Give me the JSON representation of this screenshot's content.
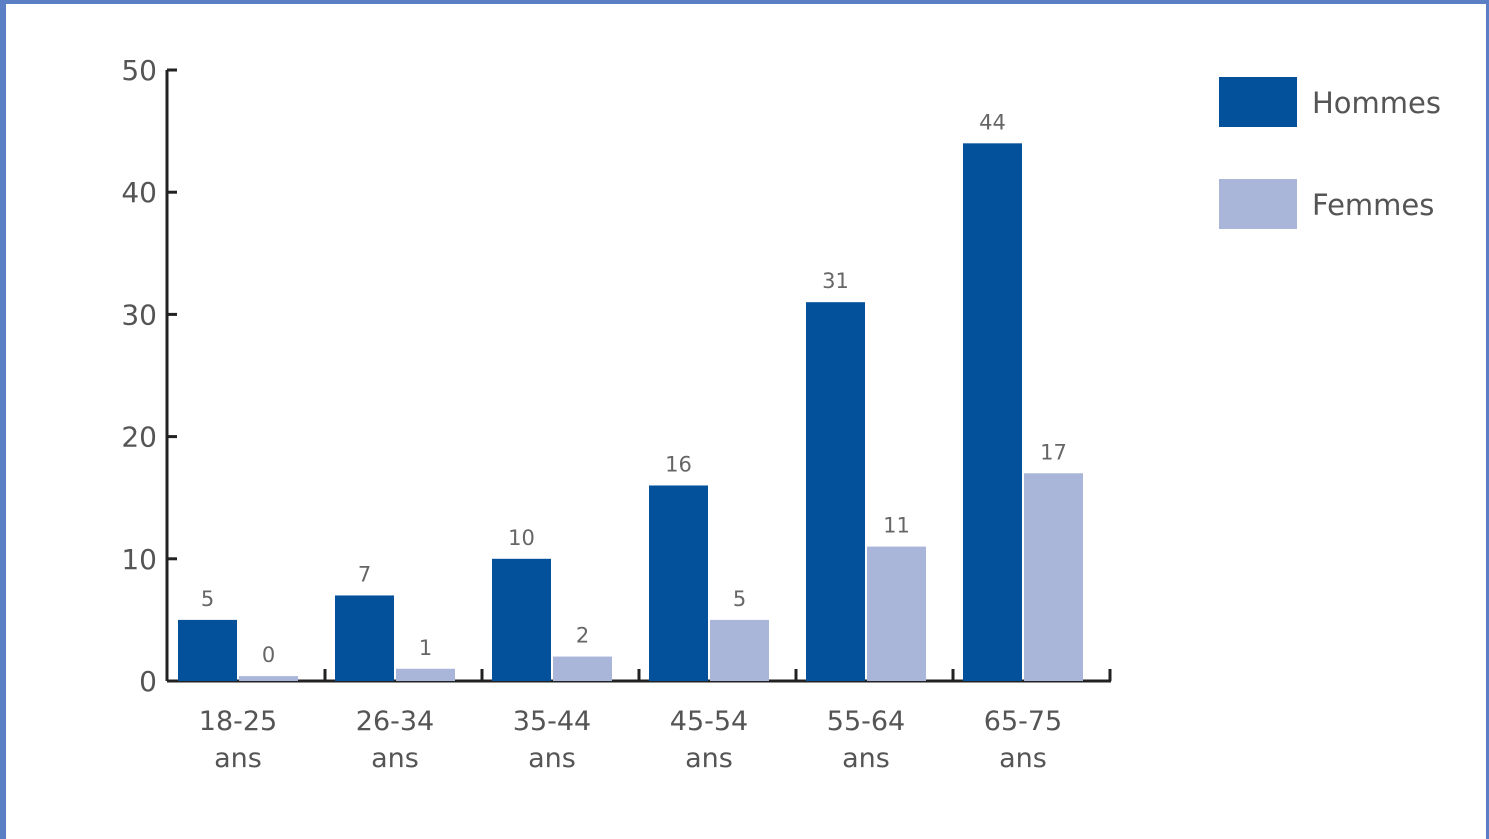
{
  "chart_data": {
    "type": "bar",
    "title": "",
    "xlabel": "",
    "ylabel": "",
    "categories": [
      [
        "18-25",
        "ans"
      ],
      [
        "26-34",
        "ans"
      ],
      [
        "35-44",
        "ans"
      ],
      [
        "45-54",
        "ans"
      ],
      [
        "55-64",
        "ans"
      ],
      [
        "65-75",
        "ans"
      ]
    ],
    "series": [
      {
        "name": "Hommes",
        "color": "#03519a",
        "values": [
          5,
          7,
          10,
          16,
          31,
          44
        ]
      },
      {
        "name": "Femmes",
        "color": "#a9b6da",
        "values": [
          0,
          1,
          2,
          5,
          11,
          17
        ]
      }
    ],
    "ylim": [
      0,
      50
    ],
    "yticks": [
      0,
      10,
      20,
      30,
      40,
      50
    ],
    "grid": false,
    "legend_position": "top-right",
    "data_labels": true,
    "frame_color": "#5b7fc4"
  }
}
